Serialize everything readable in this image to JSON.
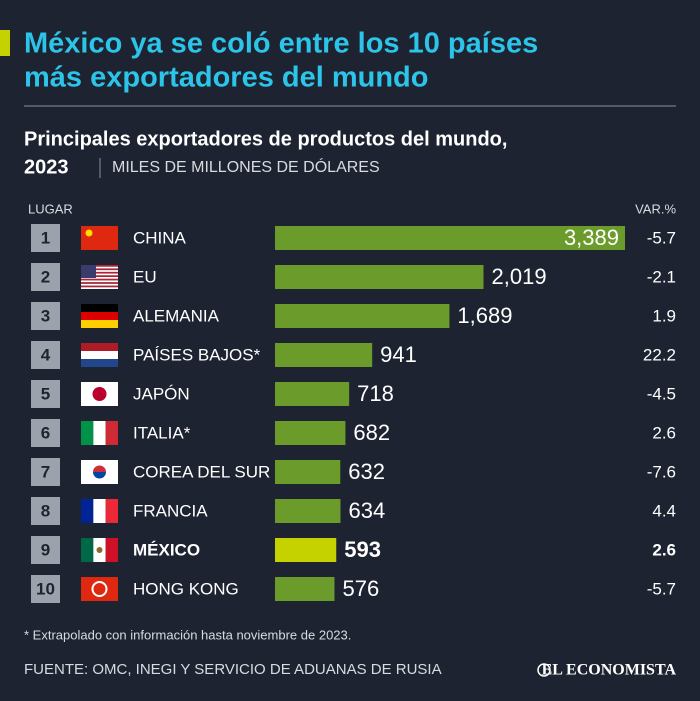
{
  "chart_data": {
    "type": "bar",
    "orientation": "horizontal",
    "title": [
      "México ya se coló entre los 10 países",
      "más exportadores del mundo"
    ],
    "subtitle": [
      "Principales exportadores de productos del mundo,",
      "2023"
    ],
    "unit": "MILES DE MILLONES DE DÓLARES",
    "rank_header": "LUGAR",
    "change_header": "VAR.%",
    "ranks": [
      1,
      2,
      3,
      4,
      5,
      6,
      7,
      8,
      9,
      10
    ],
    "categories": [
      "CHINA",
      "EU",
      "ALEMANIA",
      "PAÍSES BAJOS*",
      "JAPÓN",
      "ITALIA*",
      "COREA DEL SUR",
      "FRANCIA",
      "MÉXICO",
      "HONG KONG"
    ],
    "values": [
      3389,
      2019,
      1689,
      941,
      718,
      682,
      632,
      634,
      593,
      576
    ],
    "value_labels": [
      "3,389",
      "2,019",
      "1,689",
      "941",
      "718",
      "682",
      "632",
      "634",
      "593",
      "576"
    ],
    "changes": [
      -5.7,
      -2.1,
      1.9,
      22.2,
      -4.5,
      2.6,
      -7.6,
      4.4,
      2.6,
      -5.7
    ],
    "colors": [
      "#6a9b2b",
      "#6a9b2b",
      "#6a9b2b",
      "#6a9b2b",
      "#6a9b2b",
      "#6a9b2b",
      "#6a9b2b",
      "#6a9b2b",
      "#c6d200",
      "#6a9b2b"
    ],
    "footnote": "* Extrapolado con información hasta noviembre de 2023.",
    "source": "FUENTE: OMC, INEGI Y SERVICIO DE ADUANAS DE RUSIA",
    "brand": "EL ECONOMISTA"
  }
}
